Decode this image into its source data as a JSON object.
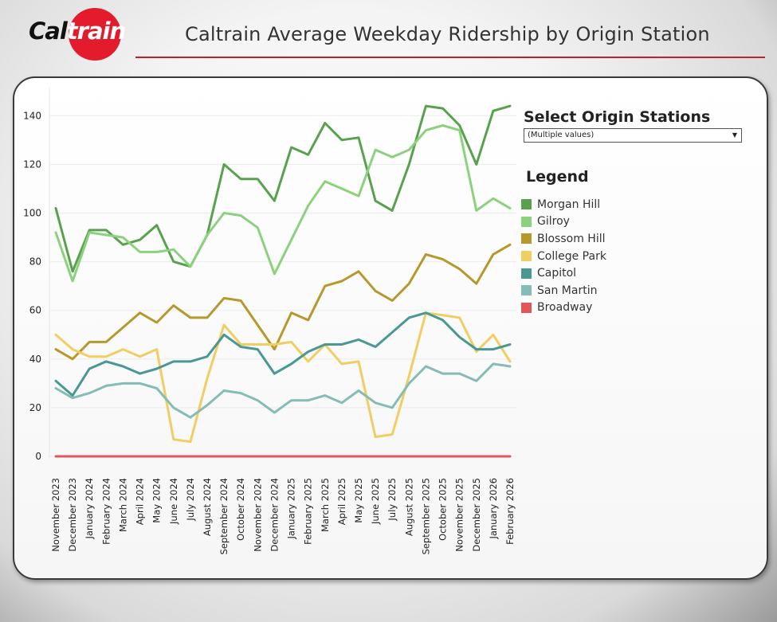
{
  "header": {
    "logo_text_dark": "Cal",
    "logo_text_light": "train",
    "title": "Caltrain Average Weekday Ridership by Origin Station"
  },
  "filter": {
    "title": "Select Origin Stations",
    "selected": "(Multiple values)"
  },
  "legend": {
    "title": "Legend"
  },
  "chart_data": {
    "type": "line",
    "title": "Caltrain Average Weekday Ridership by Origin Station",
    "xlabel": "",
    "ylabel": "",
    "ylim": [
      0,
      145
    ],
    "yticks": [
      0,
      20,
      40,
      60,
      80,
      100,
      120,
      140
    ],
    "grid": true,
    "legend_position": "right",
    "categories": [
      "November 2023",
      "December 2023",
      "January 2024",
      "February 2024",
      "March 2024",
      "April 2024",
      "May 2024",
      "June 2024",
      "July 2024",
      "August 2024",
      "September 2024",
      "October 2024",
      "November 2024",
      "December 2024",
      "January 2025",
      "February 2025",
      "March 2025",
      "April 2025",
      "May 2025",
      "June 2025",
      "July 2025",
      "August 2025",
      "September 2025",
      "October 2025",
      "November 2025",
      "December 2025",
      "January 2026",
      "February 2026"
    ],
    "series": [
      {
        "name": "Morgan Hill",
        "color": "#59a14f",
        "values": [
          102,
          76,
          93,
          93,
          87,
          89,
          95,
          80,
          78,
          91,
          120,
          114,
          114,
          105,
          127,
          124,
          137,
          130,
          131,
          105,
          101,
          120,
          144,
          143,
          136,
          120,
          142,
          144
        ]
      },
      {
        "name": "Gilroy",
        "color": "#8cd17d",
        "values": [
          92,
          72,
          92,
          91,
          90,
          84,
          84,
          85,
          78,
          91,
          100,
          99,
          94,
          75,
          89,
          103,
          113,
          110,
          107,
          126,
          123,
          126,
          134,
          136,
          134,
          101,
          106,
          102
        ]
      },
      {
        "name": "Blossom Hill",
        "color": "#b6992d",
        "values": [
          44,
          40,
          47,
          47,
          53,
          59,
          55,
          62,
          57,
          57,
          65,
          64,
          54,
          44,
          59,
          56,
          70,
          72,
          76,
          68,
          64,
          71,
          83,
          81,
          77,
          71,
          83,
          87
        ]
      },
      {
        "name": "College Park",
        "color": "#f1ce63",
        "values": [
          50,
          44,
          41,
          41,
          44,
          41,
          44,
          7,
          6,
          32,
          54,
          46,
          46,
          46,
          47,
          39,
          46,
          38,
          39,
          8,
          9,
          33,
          59,
          58,
          57,
          43,
          50,
          39
        ]
      },
      {
        "name": "Capitol",
        "color": "#499894",
        "values": [
          31,
          25,
          36,
          39,
          37,
          34,
          36,
          39,
          39,
          41,
          50,
          45,
          44,
          34,
          38,
          43,
          46,
          46,
          48,
          45,
          51,
          57,
          59,
          56,
          49,
          44,
          44,
          46
        ]
      },
      {
        "name": "San Martin",
        "color": "#86bcb6",
        "values": [
          28,
          24,
          26,
          29,
          30,
          30,
          28,
          20,
          16,
          21,
          27,
          26,
          23,
          18,
          23,
          23,
          25,
          22,
          27,
          22,
          20,
          30,
          37,
          34,
          34,
          31,
          38,
          37
        ]
      },
      {
        "name": "Broadway",
        "color": "#e15759",
        "values": [
          0,
          0,
          0,
          0,
          0,
          0,
          0,
          0,
          0,
          0,
          0,
          0,
          0,
          0,
          0,
          0,
          0,
          0,
          0,
          0,
          0,
          0,
          0,
          0,
          0,
          0,
          0,
          0
        ]
      }
    ]
  }
}
